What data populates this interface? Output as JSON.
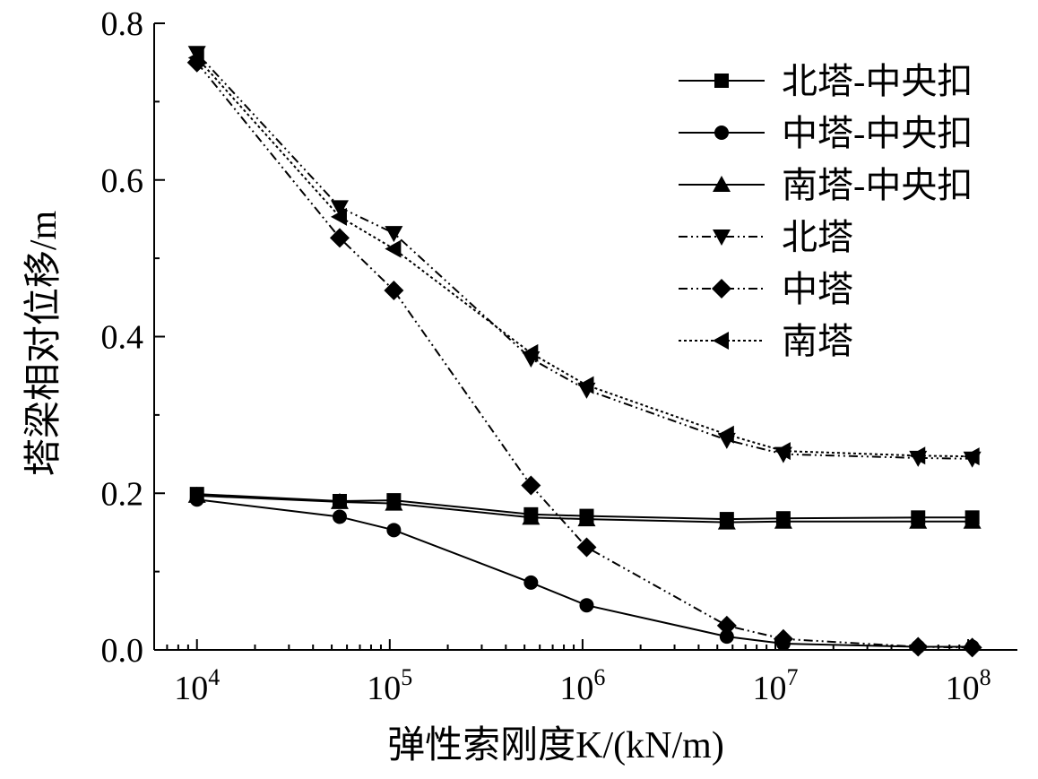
{
  "chart_data": {
    "type": "line",
    "xlabel": "弹性索刚度K/(kN/m)",
    "ylabel": "塔梁相对位移/m",
    "x_scale": "log",
    "xlim": [
      6000,
      180000000
    ],
    "ylim": [
      0,
      0.8
    ],
    "x_ticks": [
      10000,
      100000,
      1000000,
      10000000,
      100000000
    ],
    "x_tick_labels": [
      {
        "base": "10",
        "exp": "4"
      },
      {
        "base": "10",
        "exp": "5"
      },
      {
        "base": "10",
        "exp": "6"
      },
      {
        "base": "10",
        "exp": "7"
      },
      {
        "base": "10",
        "exp": "8"
      }
    ],
    "y_ticks": [
      0.0,
      0.2,
      0.4,
      0.6,
      0.8
    ],
    "y_tick_labels": [
      "0.0",
      "0.2",
      "0.4",
      "0.6",
      "0.8"
    ],
    "legend_position": "top-right",
    "grid": false,
    "x": [
      10000,
      55000,
      105000,
      540000,
      1050000,
      5600000,
      11000000,
      55000000,
      105000000
    ],
    "series": [
      {
        "name": "北塔-中央扣",
        "marker": "square",
        "dash": "solid",
        "values": [
          0.199,
          0.19,
          0.191,
          0.173,
          0.171,
          0.167,
          0.168,
          0.169,
          0.169
        ]
      },
      {
        "name": "中塔-中央扣",
        "marker": "circle",
        "dash": "solid",
        "values": [
          0.192,
          0.17,
          0.153,
          0.086,
          0.057,
          0.017,
          0.008,
          0.004,
          0.004
        ]
      },
      {
        "name": "南塔-中央扣",
        "marker": "triangle-up",
        "dash": "solid",
        "values": [
          0.197,
          0.189,
          0.187,
          0.169,
          0.167,
          0.163,
          0.164,
          0.164,
          0.164
        ]
      },
      {
        "name": "北塔",
        "marker": "triangle-down",
        "dash": "dashdotdot",
        "values": [
          0.762,
          0.565,
          0.532,
          0.372,
          0.332,
          0.268,
          0.25,
          0.245,
          0.244
        ]
      },
      {
        "name": "中塔",
        "marker": "diamond",
        "dash": "dashdotdot",
        "values": [
          0.75,
          0.526,
          0.459,
          0.21,
          0.131,
          0.031,
          0.014,
          0.004,
          0.003
        ]
      },
      {
        "name": "南塔",
        "marker": "triangle-left",
        "dash": "dotted",
        "values": [
          0.756,
          0.553,
          0.512,
          0.379,
          0.338,
          0.275,
          0.254,
          0.248,
          0.247
        ]
      }
    ]
  }
}
